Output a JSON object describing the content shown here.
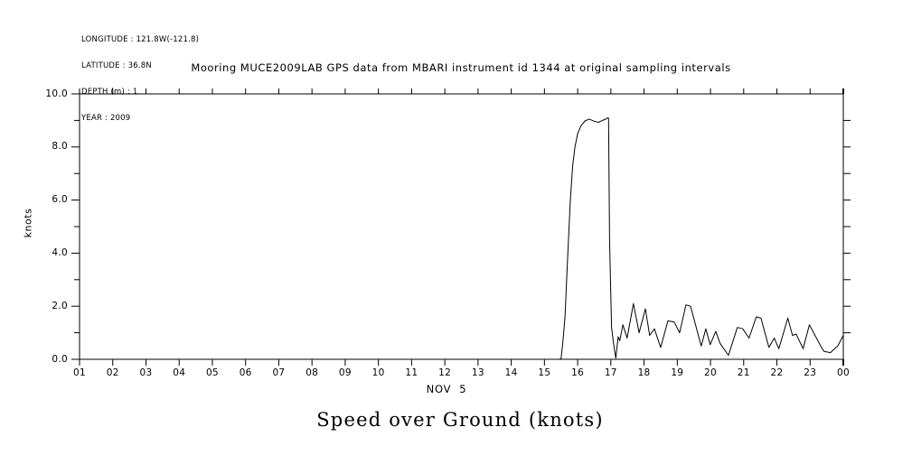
{
  "meta": {
    "lines": [
      "LONGITUDE : 121.8W(-121.8)",
      "LATITUDE : 36.8N",
      "DEPTH (m) : 1",
      "YEAR : 2009"
    ]
  },
  "title": "Mooring MUCE2009LAB GPS data from MBARI instrument id 1344 at original sampling intervals",
  "footer_title": "Speed over Ground (knots)",
  "chart_data": {
    "type": "line",
    "title": "Mooring MUCE2009LAB GPS data from MBARI instrument id 1344 at original sampling intervals",
    "ylabel": "knots",
    "x_date_label": "NOV  5",
    "ylim": [
      0,
      10
    ],
    "xlim_hours": [
      1,
      24
    ],
    "grid": false,
    "line_color": "#000000",
    "background": "#ffffff",
    "y_major_ticks": [
      0,
      2,
      4,
      6,
      8,
      10
    ],
    "y_major_ticklabels": [
      "0.0",
      "2.0",
      "4.0",
      "6.0",
      "8.0",
      "10.0"
    ],
    "y_minor_ticks": [
      1,
      3,
      5,
      7,
      9
    ],
    "y_right_ticks": [
      1,
      2,
      3,
      4,
      5,
      6,
      7,
      8,
      9
    ],
    "x_tick_hours": [
      1,
      2,
      3,
      4,
      5,
      6,
      7,
      8,
      9,
      10,
      11,
      12,
      13,
      14,
      15,
      16,
      17,
      18,
      19,
      20,
      21,
      22,
      23,
      24
    ],
    "x_ticklabels": [
      "01",
      "02",
      "03",
      "04",
      "05",
      "06",
      "07",
      "08",
      "09",
      "10",
      "11",
      "12",
      "13",
      "14",
      "15",
      "16",
      "17",
      "18",
      "19",
      "20",
      "21",
      "22",
      "23",
      "00"
    ],
    "series": [
      {
        "name": "speed-over-ground",
        "points": [
          [
            1.0,
            0.0
          ],
          [
            15.45,
            0.0
          ],
          [
            15.5,
            0.02
          ],
          [
            15.55,
            0.6
          ],
          [
            15.62,
            1.6
          ],
          [
            15.7,
            3.9
          ],
          [
            15.78,
            6.0
          ],
          [
            15.85,
            7.3
          ],
          [
            15.92,
            8.0
          ],
          [
            16.0,
            8.5
          ],
          [
            16.1,
            8.8
          ],
          [
            16.22,
            8.98
          ],
          [
            16.35,
            9.05
          ],
          [
            16.5,
            8.97
          ],
          [
            16.62,
            8.93
          ],
          [
            16.75,
            9.0
          ],
          [
            16.85,
            9.05
          ],
          [
            16.9,
            9.1
          ],
          [
            16.93,
            9.08
          ],
          [
            16.96,
            4.5
          ],
          [
            17.02,
            1.2
          ],
          [
            17.08,
            0.6
          ],
          [
            17.15,
            0.04
          ],
          [
            17.22,
            0.85
          ],
          [
            17.27,
            0.7
          ],
          [
            17.36,
            1.3
          ],
          [
            17.49,
            0.8
          ],
          [
            17.68,
            2.1
          ],
          [
            17.85,
            1.0
          ],
          [
            18.04,
            1.9
          ],
          [
            18.17,
            0.9
          ],
          [
            18.31,
            1.15
          ],
          [
            18.5,
            0.45
          ],
          [
            18.72,
            1.45
          ],
          [
            18.91,
            1.4
          ],
          [
            19.07,
            1.0
          ],
          [
            19.26,
            2.05
          ],
          [
            19.4,
            2.0
          ],
          [
            19.72,
            0.5
          ],
          [
            19.86,
            1.15
          ],
          [
            19.99,
            0.55
          ],
          [
            20.16,
            1.05
          ],
          [
            20.29,
            0.6
          ],
          [
            20.54,
            0.15
          ],
          [
            20.81,
            1.2
          ],
          [
            20.97,
            1.15
          ],
          [
            21.16,
            0.8
          ],
          [
            21.38,
            1.6
          ],
          [
            21.52,
            1.55
          ],
          [
            21.76,
            0.45
          ],
          [
            21.92,
            0.8
          ],
          [
            22.06,
            0.4
          ],
          [
            22.33,
            1.55
          ],
          [
            22.47,
            0.9
          ],
          [
            22.58,
            0.95
          ],
          [
            22.79,
            0.4
          ],
          [
            22.98,
            1.3
          ],
          [
            23.34,
            0.45
          ],
          [
            23.42,
            0.3
          ],
          [
            23.61,
            0.25
          ],
          [
            23.83,
            0.5
          ],
          [
            24.0,
            0.9
          ]
        ]
      }
    ]
  }
}
